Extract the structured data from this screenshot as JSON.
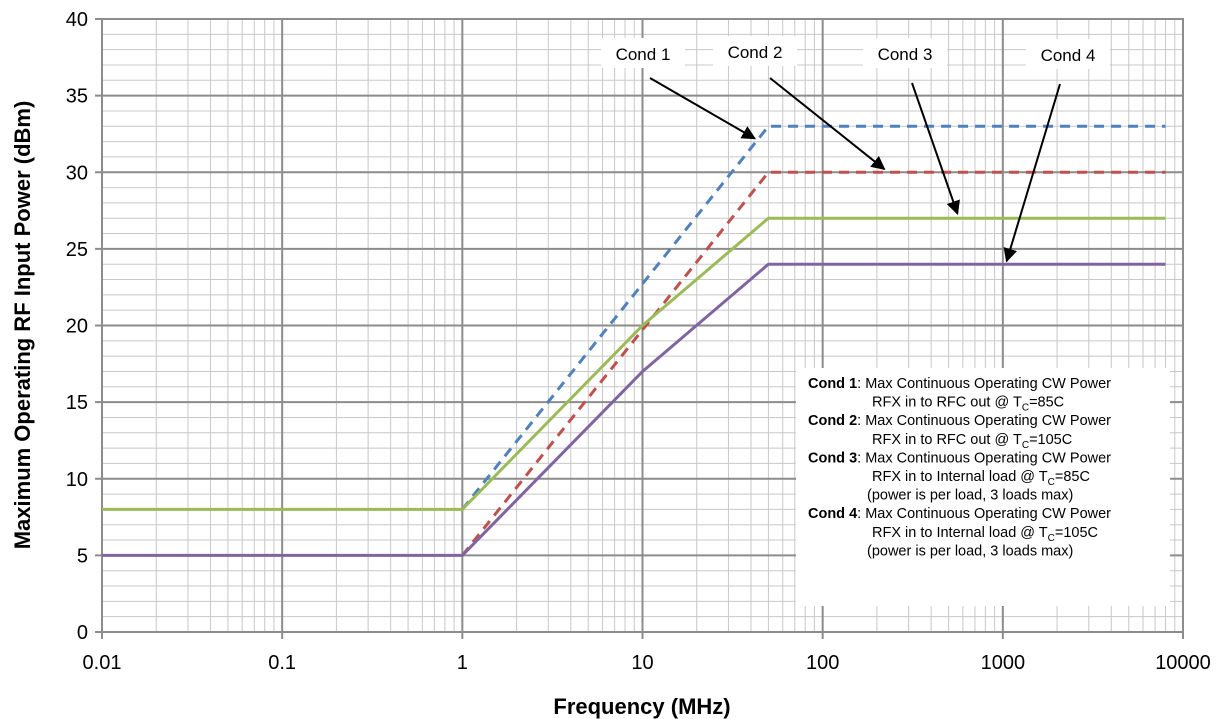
{
  "chart_data": {
    "type": "line",
    "title": "",
    "xlabel": "Frequency (MHz)",
    "ylabel": "Maximum Operating RF Input Power (dBm)",
    "xscale": "log",
    "xlim": [
      0.01,
      10000
    ],
    "ylim": [
      0,
      40
    ],
    "x_ticks": [
      "0.01",
      "0.1",
      "1",
      "10",
      "100",
      "1000",
      "10000"
    ],
    "y_ticks": [
      "0",
      "5",
      "10",
      "15",
      "20",
      "25",
      "30",
      "35",
      "40"
    ],
    "grid": true,
    "series": [
      {
        "name": "Cond 1",
        "color": "#4F81BD",
        "style": "dashed",
        "x": [
          1,
          50,
          8000
        ],
        "y": [
          8,
          33,
          33
        ]
      },
      {
        "name": "Cond 2",
        "color": "#C0504D",
        "style": "dashed",
        "x": [
          1,
          50,
          8000
        ],
        "y": [
          5,
          30,
          30
        ]
      },
      {
        "name": "Cond 3",
        "color": "#9BBB59",
        "style": "solid",
        "x": [
          0.01,
          1,
          10,
          50,
          8000
        ],
        "y": [
          8,
          8,
          20,
          27,
          27
        ]
      },
      {
        "name": "Cond 4",
        "color": "#8064A2",
        "style": "solid",
        "x": [
          0.01,
          1,
          10,
          50,
          8000
        ],
        "y": [
          5,
          5,
          17,
          24,
          24
        ]
      }
    ],
    "callouts": [
      {
        "label": "Cond 1",
        "target_x": 42,
        "target_y": 32.2
      },
      {
        "label": "Cond 2",
        "target_x": 220,
        "target_y": 30.2
      },
      {
        "label": "Cond 3",
        "target_x": 560,
        "target_y": 27.3
      },
      {
        "label": "Cond 4",
        "target_x": 1050,
        "target_y": 24.2
      }
    ],
    "legend_notes": [
      {
        "label": "Cond 1",
        "line1": ": Max Continuous Operating CW Power",
        "line2_pre": "RFX in to RFC out @ T",
        "sub": "C",
        "line2_post": "=85C",
        "line3": ""
      },
      {
        "label": "Cond 2",
        "line1": ": Max Continuous Operating CW Power",
        "line2_pre": "RFX in to RFC out @ T",
        "sub": "C",
        "line2_post": "=105C",
        "line3": ""
      },
      {
        "label": "Cond 3",
        "line1": ": Max Continuous Operating CW Power",
        "line2_pre": "RFX in to Internal load @ T",
        "sub": "C",
        "line2_post": "=85C",
        "line3": "(power is per load, 3 loads max)"
      },
      {
        "label": "Cond 4",
        "line1": ": Max Continuous Operating CW Power",
        "line2_pre": "RFX in to Internal load @ T",
        "sub": "C",
        "line2_post": "=105C",
        "line3": "(power is per load, 3 loads max)"
      }
    ]
  }
}
